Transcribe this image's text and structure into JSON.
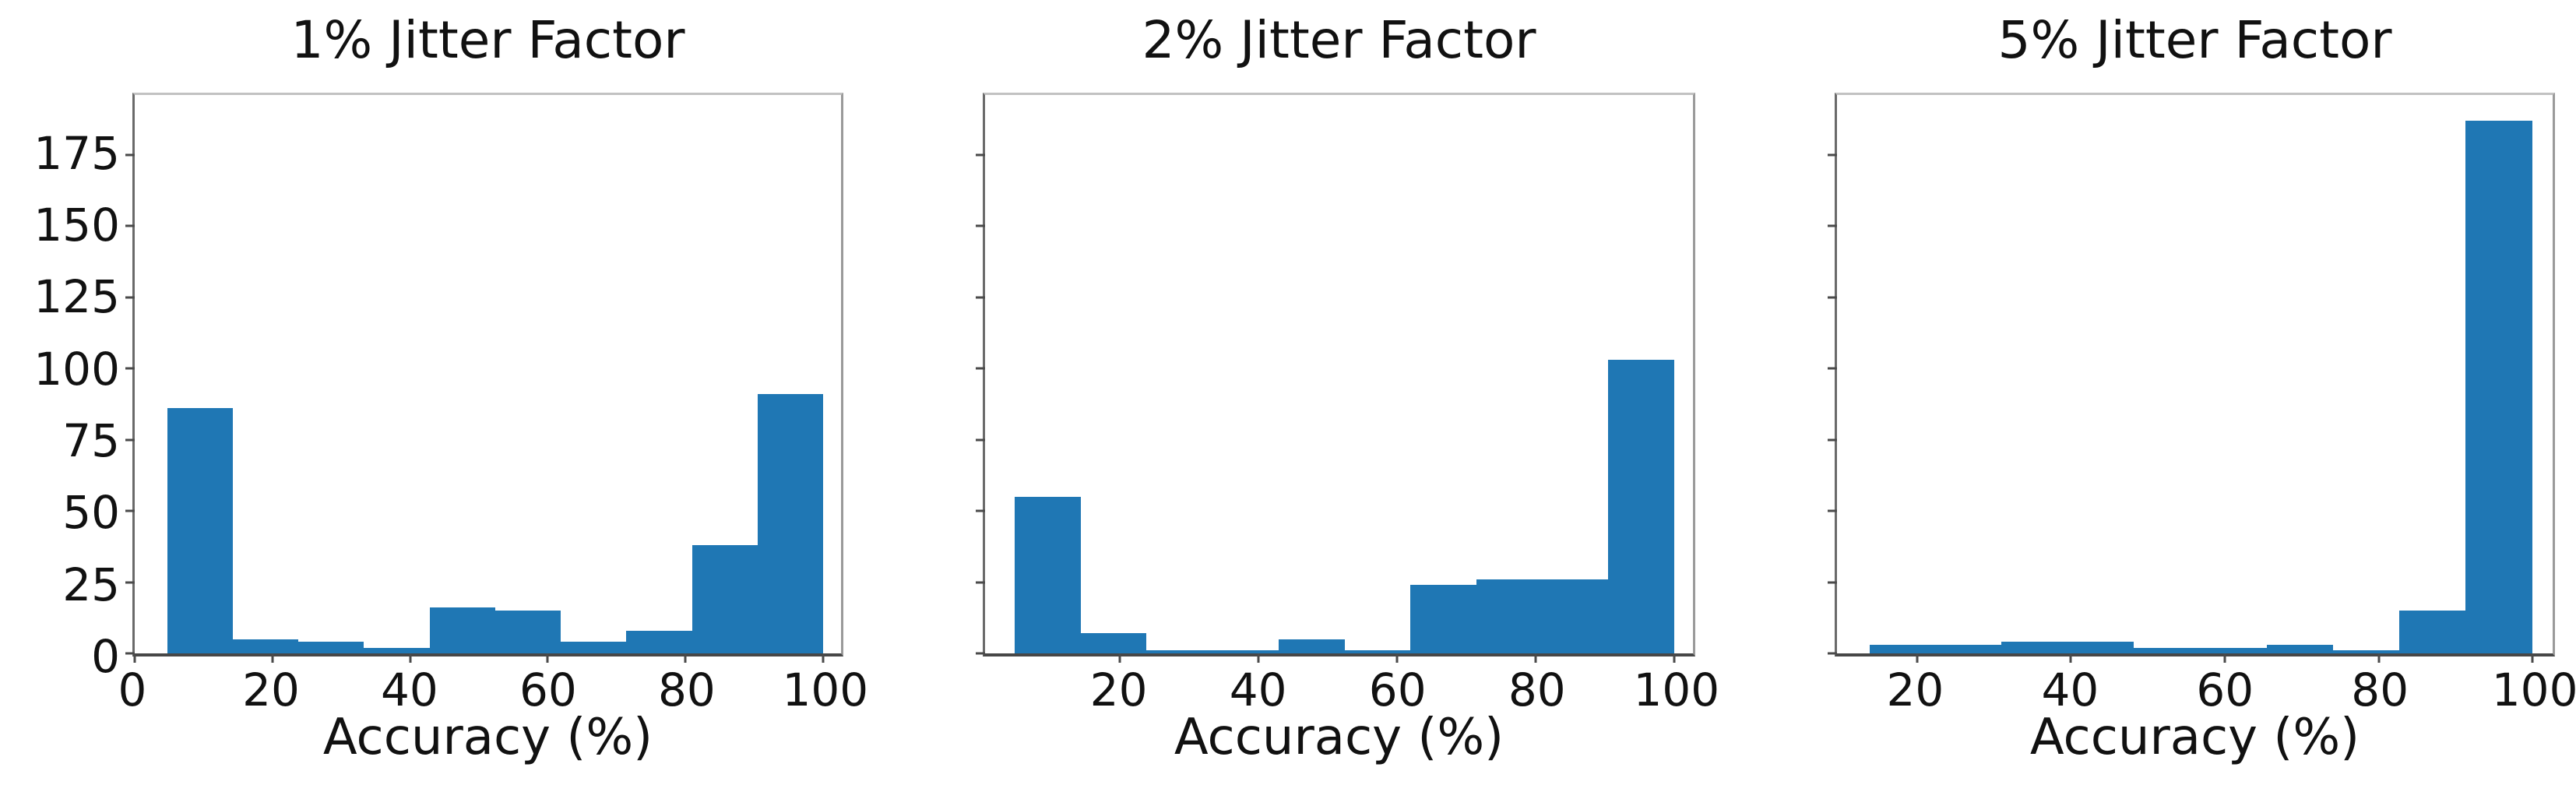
{
  "figure": {
    "background": "#ffffff",
    "bar_color": "#1f77b4",
    "text_color": "#111111"
  },
  "chart_data": [
    {
      "type": "bar",
      "subtype": "histogram",
      "title": "1% Jitter Factor",
      "xlabel": "Accuracy (%)",
      "x_ticks": [
        0,
        20,
        40,
        60,
        80,
        100
      ],
      "y_ticks": [
        0,
        25,
        50,
        75,
        100,
        125,
        150,
        175
      ],
      "y_tick_labels_visible": true,
      "xlim": [
        0,
        102.6
      ],
      "ylim": [
        0,
        196
      ],
      "grid": false,
      "bin_edges": [
        4.8,
        14.3,
        23.8,
        33.3,
        42.9,
        52.4,
        61.9,
        71.4,
        81.0,
        90.5,
        100
      ],
      "values": [
        86,
        5,
        4,
        2,
        16,
        15,
        4,
        8,
        38,
        91
      ]
    },
    {
      "type": "bar",
      "subtype": "histogram",
      "title": "2% Jitter Factor",
      "xlabel": "Accuracy (%)",
      "x_ticks": [
        20,
        40,
        60,
        80,
        100
      ],
      "y_ticks": [
        0,
        25,
        50,
        75,
        100,
        125,
        150,
        175
      ],
      "y_tick_labels_visible": false,
      "xlim": [
        0.5,
        102.7
      ],
      "ylim": [
        0,
        196
      ],
      "grid": false,
      "bin_edges": [
        4.8,
        14.3,
        23.8,
        33.3,
        42.9,
        52.4,
        61.9,
        71.4,
        81.0,
        90.5,
        100
      ],
      "values": [
        55,
        7,
        1,
        1,
        5,
        1,
        24,
        26,
        26,
        103
      ]
    },
    {
      "type": "bar",
      "subtype": "histogram",
      "title": "5% Jitter Factor",
      "xlabel": "Accuracy (%)",
      "x_ticks": [
        20,
        40,
        60,
        80,
        100
      ],
      "y_ticks": [
        0,
        25,
        50,
        75,
        100,
        125,
        150,
        175
      ],
      "y_tick_labels_visible": false,
      "xlim": [
        9.6,
        102.6
      ],
      "ylim": [
        0,
        196
      ],
      "grid": false,
      "bin_edges": [
        13.8,
        22.4,
        31.0,
        39.6,
        48.2,
        56.9,
        65.5,
        74.1,
        82.7,
        91.3,
        100
      ],
      "values": [
        3,
        3,
        4,
        4,
        2,
        2,
        3,
        1,
        15,
        187
      ]
    }
  ]
}
